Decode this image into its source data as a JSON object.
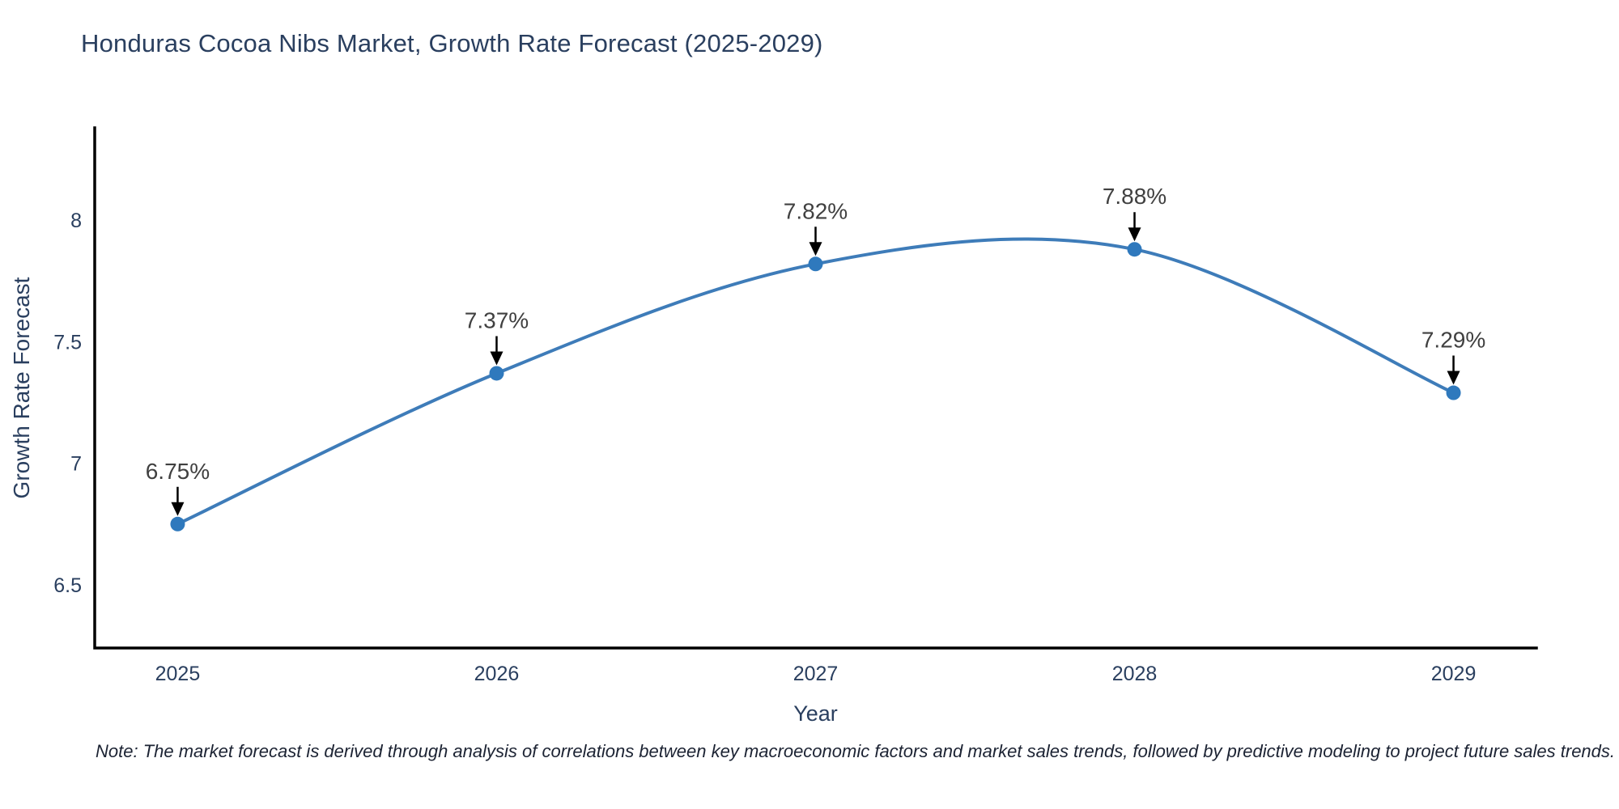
{
  "chart": {
    "title": "Honduras Cocoa Nibs Market, Growth Rate Forecast (2025-2029)"
  },
  "chart_data": {
    "type": "line",
    "line_shape": "spline",
    "x": [
      2025,
      2026,
      2027,
      2028,
      2029
    ],
    "values": [
      6.75,
      7.37,
      7.82,
      7.88,
      7.29
    ],
    "point_labels": [
      "6.75%",
      "7.37%",
      "7.82%",
      "7.88%",
      "7.29%"
    ],
    "title": "Honduras Cocoa Nibs Market, Growth Rate Forecast (2025-2029)",
    "xlabel": "Year",
    "ylabel": "Growth Rate Forecast",
    "xlim": [
      2024.74,
      2029.26
    ],
    "ylim": [
      6.24,
      8.38
    ],
    "xticks": [
      2025,
      2026,
      2027,
      2028,
      2029
    ],
    "xtick_labels": [
      "2025",
      "2026",
      "2027",
      "2028",
      "2029"
    ],
    "yticks": [
      6.5,
      7.0,
      7.5,
      8.0
    ],
    "ytick_labels": [
      "6.5",
      "7",
      "7.5",
      "8"
    ],
    "grid": false,
    "legend_position": "none",
    "colors": {
      "line": "#3e7cb9",
      "marker": "#2f79bd",
      "axis_line": "#000000",
      "axis_text": "#2a3f5f",
      "annotation_text": "#404040",
      "arrow": "#000000",
      "title": "#2a3f5f",
      "background": "#ffffff"
    }
  },
  "note": "Note: The market forecast is derived through analysis of correlations between key macroeconomic factors and market sales trends, followed by predictive modeling to project future sales trends."
}
